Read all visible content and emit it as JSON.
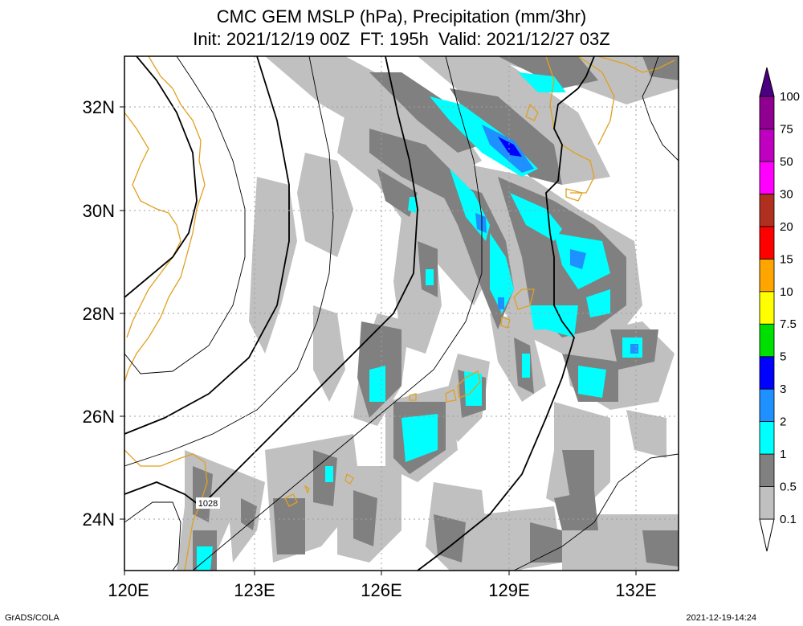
{
  "title": {
    "line1": "CMC GEM MSLP (hPa), Precipitation (mm/3hr)",
    "line2": "Init: 2021/12/19 00Z  FT: 195h  Valid: 2021/12/27 03Z"
  },
  "axes": {
    "x_ticks": [
      "120E",
      "123E",
      "126E",
      "129E",
      "132E"
    ],
    "y_ticks": [
      "32N",
      "30N",
      "28N",
      "26N",
      "24N"
    ],
    "lon_range": [
      120,
      133
    ],
    "lat_range": [
      23,
      33
    ]
  },
  "isobar_label": "1028",
  "colorbar": {
    "labels": [
      "0.1",
      "0.5",
      "1",
      "2",
      "3",
      "5",
      "7.5",
      "10",
      "15",
      "20",
      "30",
      "50",
      "75",
      "100"
    ],
    "colors": [
      "#c0c0c0",
      "#808080",
      "#00ffff",
      "#1e90ff",
      "#0000ff",
      "#00e000",
      "#ffff00",
      "#ffa500",
      "#ff0000",
      "#b03020",
      "#ff00ff",
      "#c000c0",
      "#900090",
      "#4b0082"
    ]
  },
  "colors": {
    "coastline": "#e0a020",
    "isobar": "#000000",
    "grid": "#a0a0a0"
  },
  "footer": {
    "credit": "GrADS/COLA",
    "timestamp": "2021-12-19-14:24"
  }
}
